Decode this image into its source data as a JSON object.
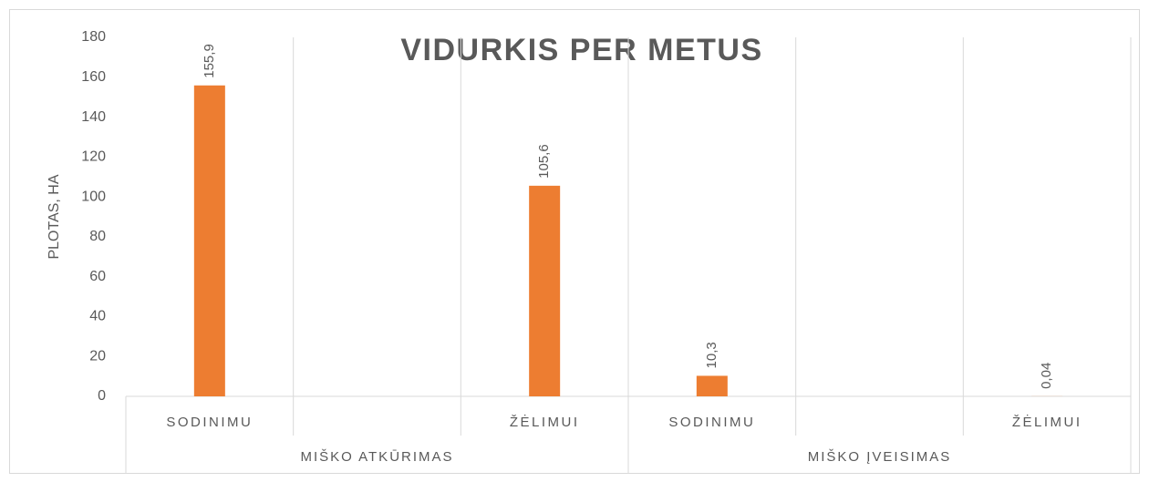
{
  "chart_data": {
    "type": "bar",
    "title": "VIDURKIS PER METUS",
    "y_label": "PLOTAS, HA",
    "categories": [
      "SODINIMU",
      null,
      "ŽĖLIMUI",
      "SODINIMU",
      null,
      "ŽĖLIMUI"
    ],
    "groups": [
      {
        "name": "MIŠKO ATKŪRIMAS",
        "size": 3
      },
      {
        "name": "MIŠKO ĮVEISIMAS",
        "size": 3
      }
    ],
    "values": [
      155.9,
      null,
      105.6,
      10.3,
      null,
      0.04
    ],
    "value_labels": [
      "155,9",
      null,
      "105,6",
      "10,3",
      null,
      "0,04"
    ],
    "color": "#ed7d31",
    "ylim": [
      0,
      180
    ],
    "yticks": [
      0,
      20,
      40,
      60,
      80,
      100,
      120,
      140,
      160,
      180
    ],
    "grid": false
  }
}
